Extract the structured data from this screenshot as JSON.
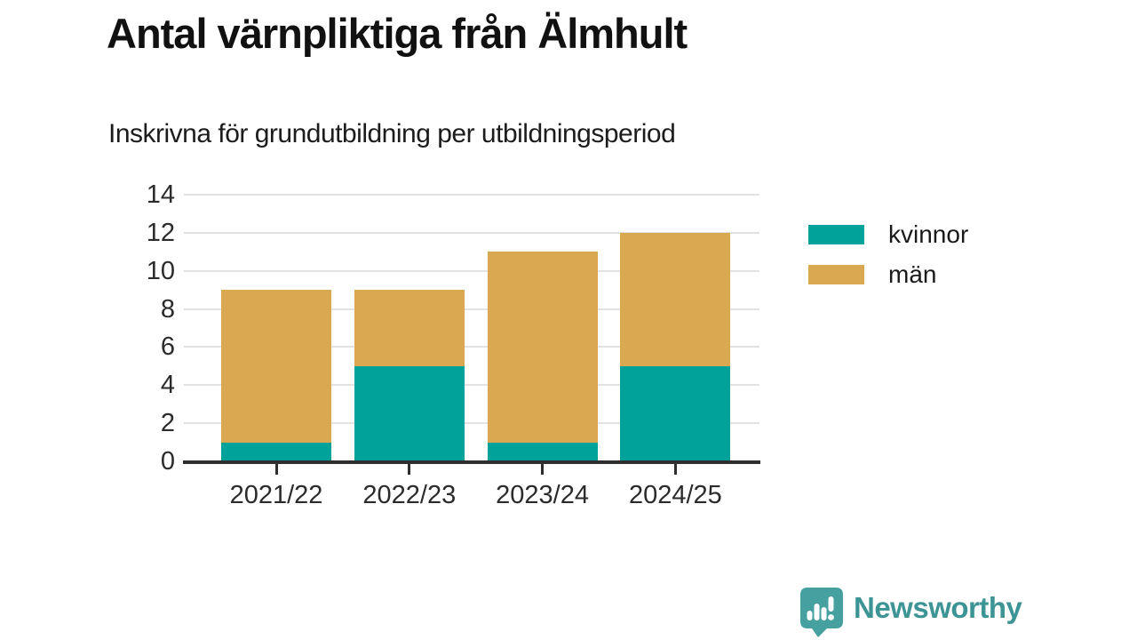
{
  "chart_data": {
    "type": "bar",
    "stacked": true,
    "title": "Antal värnpliktiga från Älmhult",
    "subtitle": "Inskrivna för grundutbildning per utbildningsperiod",
    "categories": [
      "2021/22",
      "2022/23",
      "2023/24",
      "2024/25"
    ],
    "series": [
      {
        "name": "kvinnor",
        "color": "#00A29A",
        "values": [
          1,
          5,
          1,
          5
        ]
      },
      {
        "name": "män",
        "color": "#D9A850",
        "values": [
          8,
          4,
          10,
          7
        ]
      }
    ],
    "stack_totals": [
      9,
      9,
      11,
      12
    ],
    "ylim": [
      0,
      14
    ],
    "yticks": [
      0,
      2,
      4,
      6,
      8,
      10,
      12,
      14
    ],
    "grid": "horizontal",
    "legend_position": "right",
    "xlabel": "",
    "ylabel": ""
  },
  "branding": {
    "wordmark": "Newsworthy",
    "color": "#3d9494"
  },
  "style_colors": {
    "axis": "#2e2e2e",
    "gridline": "#e2e2e2",
    "background": "#ffffff"
  }
}
